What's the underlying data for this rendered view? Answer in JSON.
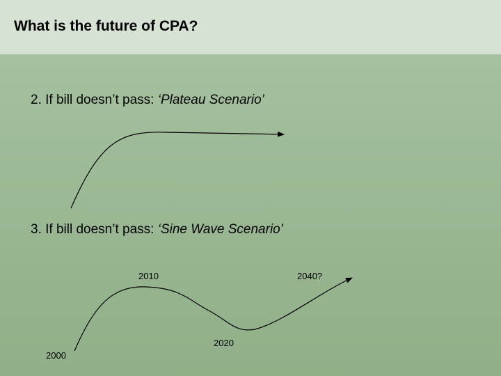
{
  "slide": {
    "title": "What is the future of CPA?"
  },
  "bullets": [
    {
      "prefix": "2. If bill doesn’t pass: ",
      "scenario": "‘Plateau Scenario’"
    },
    {
      "prefix": "3. If bill doesn’t pass: ",
      "scenario": "‘Sine Wave Scenario’"
    }
  ],
  "sine_wave": {
    "year_labels": {
      "start": "2000",
      "peak": "2010",
      "trough": "2020",
      "end": "2040?"
    }
  },
  "colors": {
    "title_bar": "#d6e3d3",
    "background": "#9ab893",
    "curve": "#000000"
  }
}
